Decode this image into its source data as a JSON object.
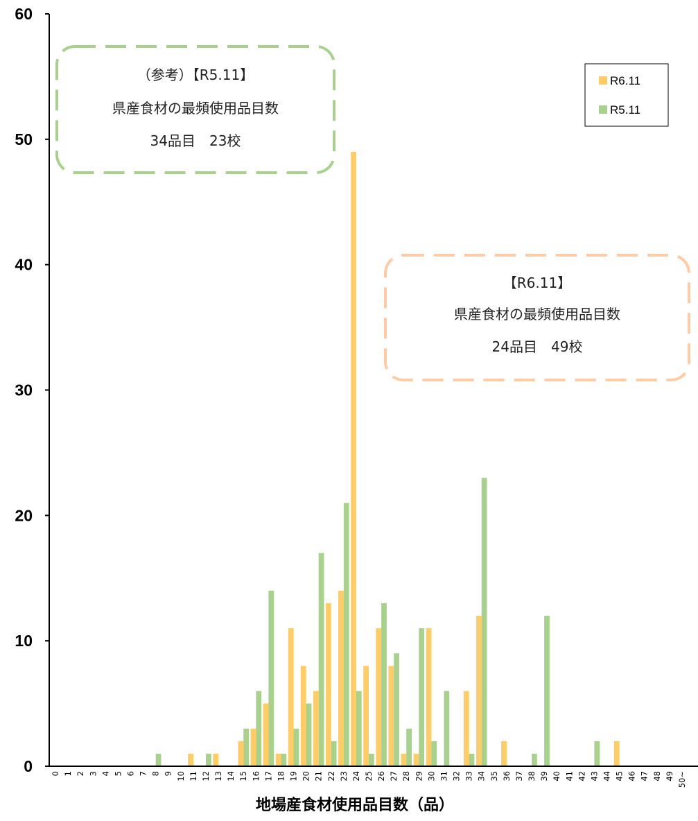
{
  "chart_data": {
    "type": "bar",
    "xlabel": "地場産食材使用品目数（品）",
    "ylabel": "",
    "ylim": [
      0,
      60
    ],
    "yticks": [
      0,
      10,
      20,
      30,
      40,
      50,
      60
    ],
    "grid": false,
    "legend_position": "top-right",
    "categories": [
      "0",
      "1",
      "2",
      "3",
      "4",
      "5",
      "6",
      "7",
      "8",
      "9",
      "10",
      "11",
      "12",
      "13",
      "14",
      "15",
      "16",
      "17",
      "18",
      "19",
      "20",
      "21",
      "22",
      "23",
      "24",
      "25",
      "26",
      "27",
      "28",
      "29",
      "30",
      "31",
      "32",
      "33",
      "34",
      "35",
      "36",
      "37",
      "38",
      "39",
      "40",
      "41",
      "42",
      "43",
      "44",
      "45",
      "46",
      "47",
      "48",
      "49",
      "50~"
    ],
    "series": [
      {
        "name": "R6.11",
        "color": "#FFCC66",
        "values": [
          0,
          0,
          0,
          0,
          0,
          0,
          0,
          0,
          0,
          0,
          0,
          1,
          0,
          1,
          0,
          2,
          3,
          5,
          1,
          11,
          8,
          6,
          13,
          14,
          49,
          8,
          11,
          8,
          1,
          1,
          11,
          0,
          0,
          6,
          12,
          0,
          2,
          0,
          0,
          0,
          0,
          0,
          0,
          0,
          0,
          2,
          0,
          0,
          0,
          0,
          0
        ]
      },
      {
        "name": "R5.11",
        "color": "#A9D18E",
        "values": [
          0,
          0,
          0,
          0,
          0,
          0,
          0,
          0,
          1,
          0,
          0,
          0,
          1,
          0,
          0,
          3,
          6,
          14,
          1,
          3,
          5,
          17,
          2,
          21,
          6,
          1,
          13,
          9,
          3,
          11,
          2,
          6,
          0,
          1,
          23,
          0,
          0,
          0,
          1,
          12,
          0,
          0,
          0,
          2,
          0,
          0,
          0,
          0,
          0,
          0,
          0
        ]
      }
    ],
    "annotations": [
      {
        "lines": [
          "（参考）【R5.11】",
          "県産食材の最頻使用品目数",
          "34品目　23校"
        ],
        "border_color": "#A9D18E"
      },
      {
        "lines": [
          "【R6.11】",
          "県産食材の最頻使用品目数",
          "24品目　49校"
        ],
        "border_color": "#FFCBA4"
      }
    ]
  }
}
